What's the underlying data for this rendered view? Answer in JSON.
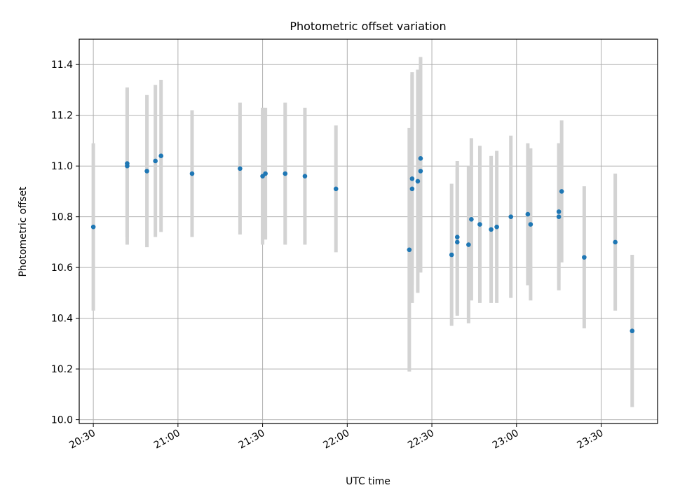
{
  "chart_data": {
    "type": "scatter",
    "title": "Photometric offset variation",
    "xlabel": "UTC time",
    "ylabel": "Photometric offset",
    "x_ticks": [
      "20:30",
      "21:00",
      "21:30",
      "22:00",
      "22:30",
      "23:00",
      "23:30"
    ],
    "y_ticks": [
      "10.0",
      "10.2",
      "10.4",
      "10.6",
      "10.8",
      "11.0",
      "11.2",
      "11.4"
    ],
    "xlim": [
      "20:25",
      "23:50"
    ],
    "ylim": [
      9.985,
      11.5
    ],
    "grid": true,
    "colors": {
      "point": "#1f77b4",
      "errorbar": "#d3d3d3",
      "grid": "#b0b0b0"
    },
    "series": [
      {
        "points": [
          {
            "t": "20:30",
            "y": 10.76,
            "yerr": 0.33
          },
          {
            "t": "20:42",
            "y": 11.01,
            "yerr": 0.29
          },
          {
            "t": "20:42",
            "y": 11.0,
            "yerr": 0.31
          },
          {
            "t": "20:49",
            "y": 10.98,
            "yerr": 0.3
          },
          {
            "t": "20:52",
            "y": 11.02,
            "yerr": 0.3
          },
          {
            "t": "20:54",
            "y": 11.04,
            "yerr": 0.3
          },
          {
            "t": "21:05",
            "y": 10.97,
            "yerr": 0.25
          },
          {
            "t": "21:22",
            "y": 10.99,
            "yerr": 0.26
          },
          {
            "t": "21:30",
            "y": 10.96,
            "yerr": 0.27
          },
          {
            "t": "21:31",
            "y": 10.97,
            "yerr": 0.26
          },
          {
            "t": "21:38",
            "y": 10.97,
            "yerr": 0.28
          },
          {
            "t": "21:45",
            "y": 10.96,
            "yerr": 0.27
          },
          {
            "t": "21:56",
            "y": 10.91,
            "yerr": 0.25
          },
          {
            "t": "22:22",
            "y": 10.67,
            "yerr": 0.48
          },
          {
            "t": "22:23",
            "y": 10.95,
            "yerr": 0.42
          },
          {
            "t": "22:23",
            "y": 10.91,
            "yerr": 0.45
          },
          {
            "t": "22:25",
            "y": 10.94,
            "yerr": 0.44
          },
          {
            "t": "22:26",
            "y": 11.03,
            "yerr": 0.4
          },
          {
            "t": "22:26",
            "y": 10.98,
            "yerr": 0.4
          },
          {
            "t": "22:37",
            "y": 10.65,
            "yerr": 0.28
          },
          {
            "t": "22:39",
            "y": 10.7,
            "yerr": 0.29
          },
          {
            "t": "22:39",
            "y": 10.72,
            "yerr": 0.3
          },
          {
            "t": "22:43",
            "y": 10.69,
            "yerr": 0.31
          },
          {
            "t": "22:44",
            "y": 10.79,
            "yerr": 0.32
          },
          {
            "t": "22:47",
            "y": 10.77,
            "yerr": 0.31
          },
          {
            "t": "22:51",
            "y": 10.75,
            "yerr": 0.29
          },
          {
            "t": "22:53",
            "y": 10.76,
            "yerr": 0.3
          },
          {
            "t": "22:58",
            "y": 10.8,
            "yerr": 0.32
          },
          {
            "t": "23:04",
            "y": 10.81,
            "yerr": 0.28
          },
          {
            "t": "23:05",
            "y": 10.77,
            "yerr": 0.3
          },
          {
            "t": "23:15",
            "y": 10.8,
            "yerr": 0.29
          },
          {
            "t": "23:15",
            "y": 10.82,
            "yerr": 0.27
          },
          {
            "t": "23:16",
            "y": 10.9,
            "yerr": 0.28
          },
          {
            "t": "23:24",
            "y": 10.64,
            "yerr": 0.28
          },
          {
            "t": "23:35",
            "y": 10.7,
            "yerr": 0.27
          },
          {
            "t": "23:41",
            "y": 10.35,
            "yerr": 0.3
          }
        ]
      }
    ]
  }
}
